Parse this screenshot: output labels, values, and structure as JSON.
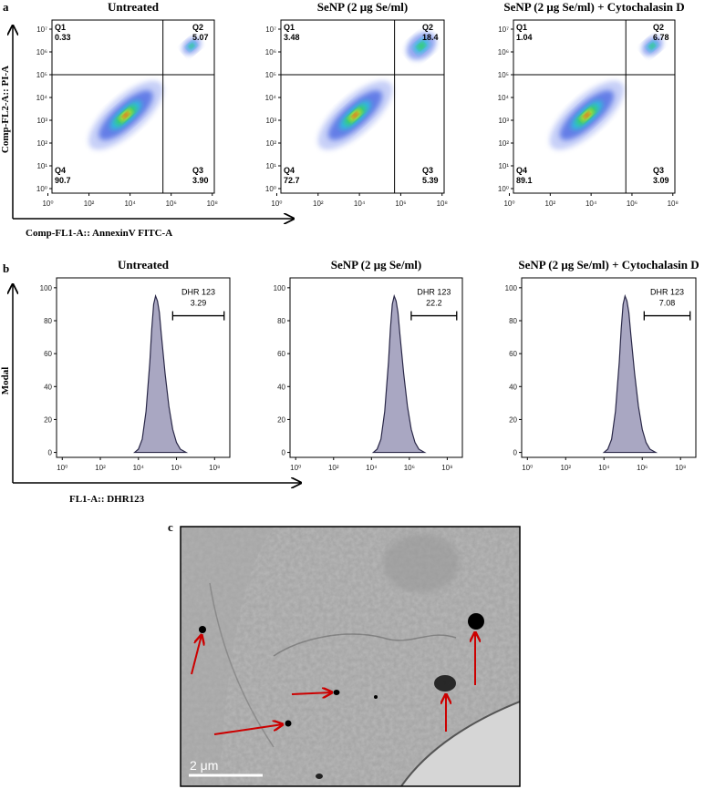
{
  "figure": {
    "panels": [
      {
        "label": "a",
        "y_axis_label": "Comp-FL2-A:: PI-A",
        "x_axis_label": "Comp-FL1-A:: AnnexinV FITC-A",
        "charts": [
          {
            "type": "density",
            "title": "Untreated",
            "xlim": [
              0.2,
              8.1
            ],
            "ylim": [
              -0.2,
              7.4
            ],
            "xticks": [
              {
                "value": 0,
                "label": "10⁰"
              },
              {
                "value": 2,
                "label": "10²"
              },
              {
                "value": 4,
                "label": "10⁴"
              },
              {
                "value": 6,
                "label": "10⁶"
              },
              {
                "value": 8,
                "label": "10⁸"
              }
            ],
            "yticks": [
              {
                "value": 0,
                "label": "10⁰"
              },
              {
                "value": 1,
                "label": "10¹"
              },
              {
                "value": 2,
                "label": "10²"
              },
              {
                "value": 3,
                "label": "10³"
              },
              {
                "value": 4,
                "label": "10⁴"
              },
              {
                "value": 5,
                "label": "10⁵"
              },
              {
                "value": 6,
                "label": "10⁶"
              },
              {
                "value": 7,
                "label": "10⁷"
              }
            ],
            "gate_x": 5.6,
            "gate_y": 5.0,
            "quadrants": [
              {
                "name": "Q1",
                "value": 0.33
              },
              {
                "name": "Q2",
                "value": 5.07
              },
              {
                "name": "Q3",
                "value": 3.9,
                "value_label": "3.90"
              },
              {
                "name": "Q4",
                "value": 90.7
              }
            ]
          },
          {
            "type": "density",
            "title": "SeNP (2 μg Se/ml)",
            "xlim": [
              0.2,
              8.1
            ],
            "ylim": [
              -0.2,
              7.4
            ],
            "xticks": [
              {
                "value": 0,
                "label": "10⁰"
              },
              {
                "value": 2,
                "label": "10²"
              },
              {
                "value": 4,
                "label": "10⁴"
              },
              {
                "value": 6,
                "label": "10⁶"
              },
              {
                "value": 8,
                "label": "10⁸"
              }
            ],
            "yticks": [
              {
                "value": 0,
                "label": "10⁰"
              },
              {
                "value": 1,
                "label": "10¹"
              },
              {
                "value": 2,
                "label": "10²"
              },
              {
                "value": 3,
                "label": "10³"
              },
              {
                "value": 4,
                "label": "10⁴"
              },
              {
                "value": 5,
                "label": "10⁵"
              },
              {
                "value": 6,
                "label": "10⁶"
              },
              {
                "value": 7,
                "label": "10⁷"
              }
            ],
            "gate_x": 5.7,
            "gate_y": 5.0,
            "quadrants": [
              {
                "name": "Q1",
                "value": 3.48
              },
              {
                "name": "Q2",
                "value": 18.4
              },
              {
                "name": "Q3",
                "value": 5.39
              },
              {
                "name": "Q4",
                "value": 72.7
              }
            ]
          },
          {
            "type": "density",
            "title": "SeNP (2 μg Se/ml) + Cytochalasin D",
            "xlim": [
              0.2,
              8.1
            ],
            "ylim": [
              -0.2,
              7.4
            ],
            "xticks": [
              {
                "value": 0,
                "label": "10⁰"
              },
              {
                "value": 2,
                "label": "10²"
              },
              {
                "value": 4,
                "label": "10⁴"
              },
              {
                "value": 6,
                "label": "10⁶"
              },
              {
                "value": 8,
                "label": "10⁸"
              }
            ],
            "yticks": [
              {
                "value": 0,
                "label": "10⁰"
              },
              {
                "value": 1,
                "label": "10¹"
              },
              {
                "value": 2,
                "label": "10²"
              },
              {
                "value": 3,
                "label": "10³"
              },
              {
                "value": 4,
                "label": "10⁴"
              },
              {
                "value": 5,
                "label": "10⁵"
              },
              {
                "value": 6,
                "label": "10⁶"
              },
              {
                "value": 7,
                "label": "10⁷"
              }
            ],
            "gate_x": 5.7,
            "gate_y": 5.0,
            "quadrants": [
              {
                "name": "Q1",
                "value": 1.04
              },
              {
                "name": "Q2",
                "value": 6.78
              },
              {
                "name": "Q3",
                "value": 3.09
              },
              {
                "name": "Q4",
                "value": 89.1
              }
            ]
          }
        ]
      },
      {
        "label": "b",
        "y_axis_label": "Modal",
        "x_axis_label": "FL1-A:: DHR123",
        "charts": [
          {
            "type": "histogram",
            "title": "Untreated",
            "xlim": [
              -0.3,
              8.8
            ],
            "ylim": [
              -3,
              106
            ],
            "color": "#a9a7c2",
            "xticks": [
              {
                "value": 0,
                "label": "10⁰"
              },
              {
                "value": 2,
                "label": "10²"
              },
              {
                "value": 4,
                "label": "10⁴"
              },
              {
                "value": 6,
                "label": "10⁶"
              },
              {
                "value": 8,
                "label": "10⁸"
              }
            ],
            "yticks": [
              0,
              20,
              40,
              60,
              80,
              100
            ],
            "x": [
              3.8,
              4.0,
              4.2,
              4.4,
              4.6,
              4.7,
              4.8,
              4.9,
              5.0,
              5.1,
              5.2,
              5.4,
              5.6,
              5.8,
              6.0,
              6.2,
              6.5
            ],
            "values": [
              0,
              2,
              8,
              25,
              55,
              75,
              90,
              95,
              92,
              85,
              72,
              48,
              28,
              14,
              6,
              2,
              0
            ],
            "gate": {
              "name": "DHR 123",
              "value": 3.29,
              "y": 83,
              "range": [
                5.8,
                8.5
              ]
            }
          },
          {
            "type": "histogram",
            "title": "SeNP (2 μg Se/ml)",
            "xlim": [
              -0.3,
              8.8
            ],
            "ylim": [
              -3,
              106
            ],
            "color": "#a9a7c2",
            "xticks": [
              {
                "value": 0,
                "label": "10⁰"
              },
              {
                "value": 2,
                "label": "10²"
              },
              {
                "value": 4,
                "label": "10⁴"
              },
              {
                "value": 6,
                "label": "10⁶"
              },
              {
                "value": 8,
                "label": "10⁸"
              }
            ],
            "yticks": [
              0,
              20,
              40,
              60,
              80,
              100
            ],
            "x": [
              4.1,
              4.3,
              4.5,
              4.7,
              4.9,
              5.0,
              5.1,
              5.2,
              5.3,
              5.4,
              5.5,
              5.7,
              5.9,
              6.1,
              6.3,
              6.5,
              6.8
            ],
            "values": [
              0,
              2,
              8,
              25,
              55,
              75,
              90,
              95,
              92,
              85,
              72,
              48,
              28,
              14,
              6,
              2,
              0
            ],
            "gate": {
              "name": "DHR 123",
              "value": 22.2,
              "y": 83,
              "range": [
                6.1,
                8.5
              ]
            }
          },
          {
            "type": "histogram",
            "title": "SeNP (2 μg Se/ml) + Cytochalasin D",
            "xlim": [
              -0.3,
              8.8
            ],
            "ylim": [
              -3,
              106
            ],
            "color": "#a9a7c2",
            "xticks": [
              {
                "value": 0,
                "label": "10⁰"
              },
              {
                "value": 2,
                "label": "10²"
              },
              {
                "value": 4,
                "label": "10⁴"
              },
              {
                "value": 6,
                "label": "10⁶"
              },
              {
                "value": 8,
                "label": "10⁸"
              }
            ],
            "yticks": [
              0,
              20,
              40,
              60,
              80,
              100
            ],
            "x": [
              4.0,
              4.2,
              4.4,
              4.6,
              4.8,
              4.9,
              5.0,
              5.1,
              5.2,
              5.3,
              5.4,
              5.6,
              5.8,
              6.0,
              6.2,
              6.4,
              6.7
            ],
            "values": [
              0,
              2,
              8,
              25,
              55,
              75,
              90,
              95,
              92,
              85,
              72,
              48,
              28,
              14,
              6,
              2,
              0
            ],
            "gate": {
              "name": "DHR 123",
              "value": 7.08,
              "y": 83,
              "range": [
                6.1,
                8.5
              ]
            }
          }
        ]
      },
      {
        "label": "c",
        "image": {
          "scale_bar": "2 μm"
        }
      }
    ]
  }
}
